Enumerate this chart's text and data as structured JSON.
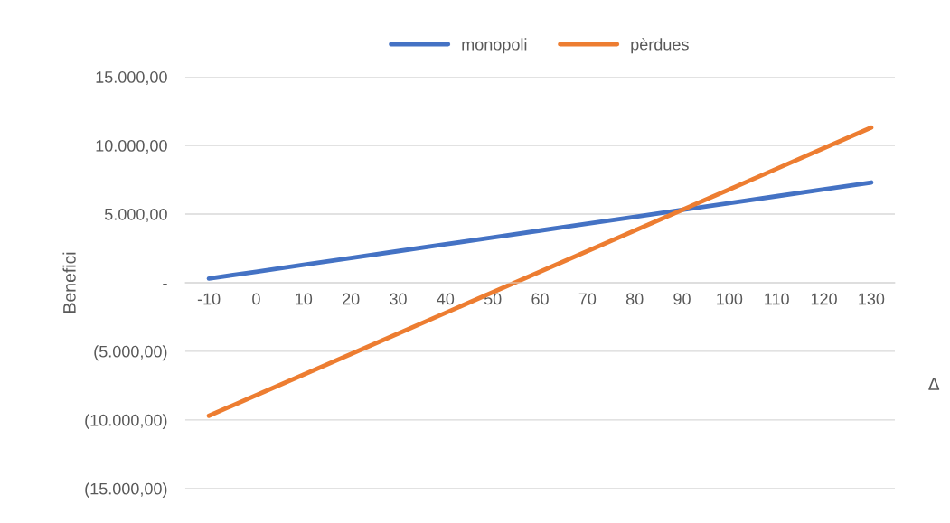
{
  "chart_data": {
    "type": "line",
    "xlabel": "Δ",
    "ylabel": "Benefici",
    "categories": [
      "-10",
      "0",
      "10",
      "20",
      "30",
      "40",
      "50",
      "60",
      "70",
      "80",
      "90",
      "100",
      "110",
      "120",
      "130"
    ],
    "series": [
      {
        "name": "monopoli",
        "color": "#4472c4",
        "values": [
          300,
          800,
          1300,
          1800,
          2300,
          2800,
          3300,
          3800,
          4300,
          4800,
          5300,
          5800,
          6300,
          6800,
          7300
        ]
      },
      {
        "name": "pèrdues",
        "color": "#ed7d31",
        "values": [
          -9700,
          -8200,
          -6700,
          -5200,
          -3700,
          -2200,
          -700,
          800,
          2300,
          3800,
          5300,
          6800,
          8300,
          9800,
          11300
        ]
      }
    ],
    "ylim": [
      -15000,
      15000
    ],
    "yticks": [
      {
        "value": -15000,
        "label": "(15.000,00)"
      },
      {
        "value": -10000,
        "label": "(10.000,00)"
      },
      {
        "value": -5000,
        "label": "(5.000,00)"
      },
      {
        "value": 0,
        "label": "-"
      },
      {
        "value": 5000,
        "label": "5.000,00"
      },
      {
        "value": 10000,
        "label": "10.000,00"
      },
      {
        "value": 15000,
        "label": "15.000,00"
      }
    ],
    "grid": "y",
    "legend": "top",
    "marker": "none",
    "line_style": "solid"
  }
}
